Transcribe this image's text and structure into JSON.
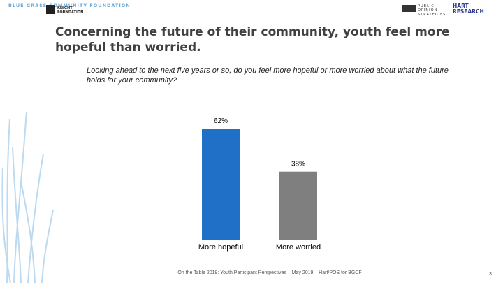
{
  "logos": [
    "BLUE GRASS COMMUNITY FOUNDATION",
    "KNIGHT FOUNDATION",
    "PUBLIC OPINION STRATEGIES",
    "HART RESEARCH"
  ],
  "title": "Concerning the future of their community, youth feel more hopeful than worried.",
  "chart_data": {
    "type": "bar",
    "subtitle": "Looking ahead to the next five years or so, do you feel more hopeful or more worried about what the future holds for your community?",
    "categories": [
      "More hopeful",
      "More worried"
    ],
    "values": [
      62,
      38
    ],
    "value_labels": [
      "62%",
      "38%"
    ],
    "colors": [
      "#1f70c6",
      "#7f7f7f"
    ],
    "ylim": [
      0,
      100
    ]
  },
  "footer": "On the Table 2019: Youth Participant Perspectives – May 2019 – Hart/POS for BGCF",
  "page_number": "3"
}
